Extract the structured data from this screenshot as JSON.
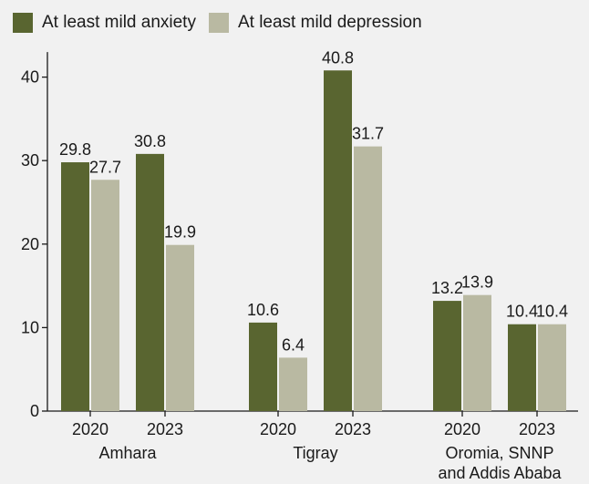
{
  "chart_data": {
    "type": "bar",
    "title": "",
    "xlabel": "",
    "ylabel": "",
    "ylim": [
      0,
      43
    ],
    "yticks": [
      0,
      10,
      20,
      30,
      40
    ],
    "grid": false,
    "legend_position": "top-left",
    "series": [
      {
        "name": "At least mild anxiety",
        "color": "#596530"
      },
      {
        "name": "At least mild depression",
        "color": "#b9b9a2"
      }
    ],
    "groups": [
      {
        "label": "Amhara",
        "categories": [
          {
            "year": "2020",
            "values": [
              29.8,
              27.7
            ],
            "labels": [
              "29.8",
              "27.7"
            ]
          },
          {
            "year": "2023",
            "values": [
              30.8,
              19.9
            ],
            "labels": [
              "30.8",
              "19.9"
            ]
          }
        ]
      },
      {
        "label": "Tigray",
        "categories": [
          {
            "year": "2020",
            "values": [
              10.6,
              6.4
            ],
            "labels": [
              "10.6",
              "6.4"
            ]
          },
          {
            "year": "2023",
            "values": [
              40.8,
              31.7
            ],
            "labels": [
              "40.8",
              "31.7"
            ]
          }
        ]
      },
      {
        "label": "Oromia, SNNP\nand Addis Ababa",
        "categories": [
          {
            "year": "2020",
            "values": [
              13.2,
              13.9
            ],
            "labels": [
              "13.2",
              "13.9"
            ]
          },
          {
            "year": "2023",
            "values": [
              10.4,
              10.4
            ],
            "labels": [
              "10.4",
              "10.4"
            ]
          }
        ]
      }
    ]
  }
}
